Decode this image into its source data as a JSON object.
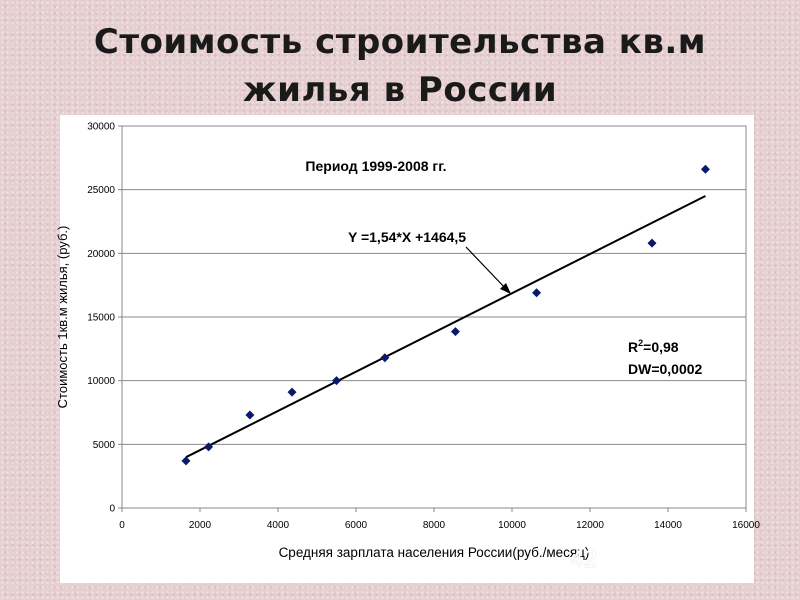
{
  "slide": {
    "title_line1": "Стоимость строительства кв.м",
    "title_line2": "жилья в России",
    "page_number": "42"
  },
  "chart_data": {
    "type": "scatter",
    "period_label": "Период 1999-2008 гг.",
    "xlabel": "Средняя зарплата населения России(руб./месяц)",
    "ylabel": "Стоимость 1кв.м жилья, (руб.)",
    "xlim": [
      0,
      16000
    ],
    "ylim": [
      0,
      30000
    ],
    "xticks": [
      0,
      2000,
      4000,
      6000,
      8000,
      10000,
      12000,
      14000,
      16000
    ],
    "yticks": [
      0,
      5000,
      10000,
      15000,
      20000,
      25000,
      30000
    ],
    "grid": "horizontal",
    "legend": "none",
    "series": [
      {
        "marker_color": "#0a1a6b",
        "points": [
          {
            "x": 1640,
            "y": 3700
          },
          {
            "x": 2220,
            "y": 4800
          },
          {
            "x": 3280,
            "y": 7300
          },
          {
            "x": 4360,
            "y": 9100
          },
          {
            "x": 5500,
            "y": 10000
          },
          {
            "x": 6740,
            "y": 11800
          },
          {
            "x": 8550,
            "y": 13850
          },
          {
            "x": 10630,
            "y": 16900
          },
          {
            "x": 13590,
            "y": 20800
          },
          {
            "x": 14960,
            "y": 26600
          }
        ]
      }
    ],
    "trendline": {
      "x_start": 1640,
      "x_end": 14960,
      "slope": 1.54,
      "intercept": 1464.5,
      "color": "#000000"
    },
    "equation_label": "Y =1,54*X +1464,5",
    "stats": {
      "r2_label": "R",
      "r2_sup": "2",
      "r2_value": "=0,98",
      "dw_label": "DW=0,0002"
    }
  }
}
